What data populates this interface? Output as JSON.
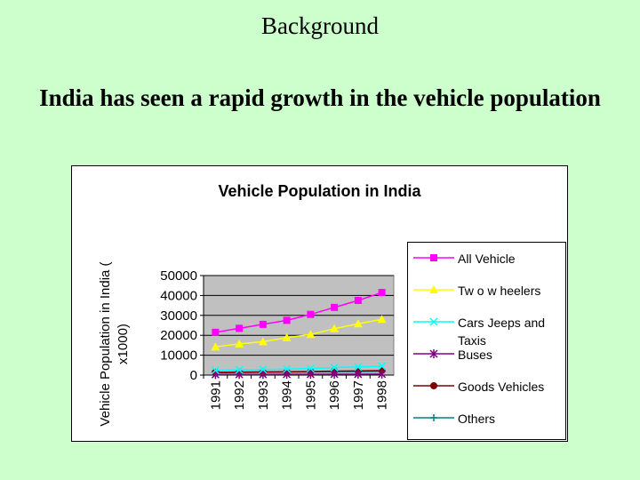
{
  "slide": {
    "heading": "Background",
    "title": "India has seen a rapid growth in the vehicle population"
  },
  "chart_data": {
    "type": "line",
    "title": "Vehicle Population in India",
    "ylabel": "Vehicle Population in India ( x1000)",
    "xlabel": "",
    "x": [
      "1991",
      "1992",
      "1993",
      "1994",
      "1995",
      "1996",
      "1997",
      "1998"
    ],
    "ylim": [
      0,
      50000
    ],
    "yticks": [
      0,
      10000,
      20000,
      30000,
      40000,
      50000
    ],
    "grid": true,
    "legend": "right",
    "series": [
      {
        "name": "All Vehicle",
        "color": "#ff00ff",
        "marker": "square",
        "values": [
          21500,
          23500,
          25500,
          27500,
          30500,
          34000,
          37500,
          41500
        ]
      },
      {
        "name": "Tw o w heelers",
        "color": "#ffff00",
        "marker": "triangle",
        "values": [
          14200,
          15700,
          16800,
          18800,
          20400,
          23300,
          25800,
          28000
        ]
      },
      {
        "name": "Cars Jeeps and Taxis",
        "color": "#00ffff",
        "marker": "x",
        "values": [
          2400,
          2600,
          2800,
          3000,
          3300,
          3800,
          4100,
          4500
        ]
      },
      {
        "name": "Buses",
        "color": "#800080",
        "marker": "star",
        "values": [
          300,
          330,
          360,
          380,
          410,
          440,
          470,
          500
        ]
      },
      {
        "name": "Goods Vehicles",
        "color": "#800000",
        "marker": "circle",
        "values": [
          1400,
          1500,
          1600,
          1700,
          1800,
          2000,
          2100,
          2300
        ]
      },
      {
        "name": "Others",
        "color": "#008080",
        "marker": "plus",
        "values": [
          1200,
          1300,
          1400,
          1500,
          1600,
          1700,
          1800,
          1900
        ]
      }
    ]
  }
}
